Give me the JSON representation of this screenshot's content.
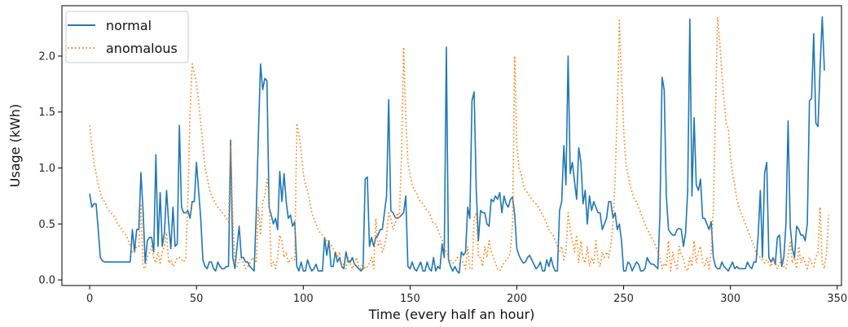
{
  "chart_data": {
    "type": "line",
    "xlabel": "Time (every half an hour)",
    "ylabel": "Usage (kWh)",
    "xlim": [
      -13,
      352
    ],
    "ylim": [
      -0.05,
      2.45
    ],
    "xticks": [
      0,
      50,
      100,
      150,
      200,
      250,
      300,
      350
    ],
    "yticks": [
      0.0,
      0.5,
      1.0,
      1.5,
      2.0
    ],
    "xtick_labels": [
      "0",
      "50",
      "100",
      "150",
      "200",
      "250",
      "300",
      "350"
    ],
    "ytick_labels": [
      "0.0",
      "0.5",
      "1.0",
      "1.5",
      "2.0"
    ],
    "grid": false,
    "legend_position": "top-left",
    "series": [
      {
        "name": "normal",
        "color": "#1f77b4",
        "style": "solid",
        "values": [
          0.77,
          0.65,
          0.68,
          0.68,
          0.45,
          0.2,
          0.17,
          0.16,
          0.16,
          0.16,
          0.16,
          0.16,
          0.16,
          0.16,
          0.16,
          0.16,
          0.16,
          0.16,
          0.16,
          0.16,
          0.45,
          0.25,
          0.45,
          0.45,
          0.96,
          0.62,
          0.15,
          0.35,
          0.38,
          0.38,
          0.25,
          1.12,
          0.3,
          0.78,
          0.3,
          0.42,
          0.8,
          0.5,
          0.28,
          0.65,
          0.3,
          0.32,
          1.38,
          0.65,
          0.6,
          0.6,
          0.62,
          0.55,
          0.7,
          0.7,
          1.05,
          0.8,
          0.55,
          0.18,
          0.12,
          0.1,
          0.16,
          0.16,
          0.1,
          0.08,
          0.16,
          0.12,
          0.1,
          0.1,
          0.12,
          0.12,
          1.25,
          0.2,
          0.1,
          0.3,
          0.48,
          0.2,
          0.2,
          0.16,
          0.16,
          0.12,
          0.1,
          0.08,
          0.6,
          1.3,
          1.93,
          1.7,
          1.8,
          1.78,
          0.65,
          0.58,
          0.5,
          0.55,
          0.45,
          0.97,
          0.7,
          0.95,
          0.7,
          0.55,
          0.58,
          0.48,
          0.52,
          0.12,
          0.08,
          0.16,
          0.08,
          0.08,
          0.18,
          0.12,
          0.08,
          0.1,
          0.14,
          0.08,
          0.08,
          0.08,
          0.38,
          0.22,
          0.35,
          0.12,
          0.12,
          0.25,
          0.16,
          0.2,
          0.12,
          0.1,
          0.25,
          0.16,
          0.16,
          0.2,
          0.14,
          0.12,
          0.1,
          0.08,
          0.1,
          0.9,
          0.92,
          0.3,
          0.38,
          0.3,
          0.38,
          0.4,
          0.45,
          0.45,
          0.6,
          0.75,
          1.61,
          0.62,
          0.6,
          0.56,
          0.55,
          0.56,
          0.58,
          0.6,
          0.75,
          0.12,
          0.1,
          0.16,
          0.1,
          0.08,
          0.12,
          0.16,
          0.08,
          0.08,
          0.16,
          0.1,
          0.08,
          0.2,
          0.08,
          0.12,
          0.1,
          0.32,
          0.2,
          2.08,
          0.18,
          0.12,
          0.08,
          0.12,
          0.08,
          0.06,
          0.25,
          0.22,
          0.25,
          0.65,
          0.55,
          1.6,
          1.68,
          0.8,
          0.35,
          0.62,
          0.6,
          0.6,
          0.5,
          0.48,
          0.72,
          0.7,
          0.75,
          0.72,
          0.78,
          0.6,
          0.75,
          0.68,
          0.65,
          0.72,
          0.74,
          0.58,
          0.28,
          0.22,
          0.18,
          0.15,
          0.16,
          0.2,
          0.22,
          0.18,
          0.14,
          0.1,
          0.12,
          0.16,
          0.08,
          0.08,
          0.18,
          0.12,
          0.2,
          0.12,
          0.08,
          0.08,
          0.62,
          0.7,
          1.2,
          0.85,
          2.0,
          0.95,
          1.05,
          0.88,
          0.72,
          1.18,
          1.05,
          0.68,
          0.8,
          0.5,
          0.75,
          0.62,
          0.7,
          0.65,
          0.6,
          0.6,
          0.45,
          0.5,
          0.55,
          0.7,
          0.7,
          0.55,
          0.6,
          0.45,
          0.5,
          0.35,
          0.08,
          0.08,
          0.16,
          0.14,
          0.08,
          0.12,
          0.16,
          0.14,
          0.08,
          0.08,
          0.1,
          0.2,
          0.16,
          0.14,
          0.14,
          0.12,
          0.1,
          0.58,
          1.81,
          1.7,
          0.75,
          0.45,
          0.42,
          0.4,
          0.4,
          0.45,
          0.46,
          0.45,
          0.3,
          0.42,
          0.8,
          2.33,
          0.75,
          1.45,
          0.85,
          0.8,
          0.9,
          0.55,
          0.55,
          0.5,
          0.45,
          0.52,
          0.2,
          0.12,
          0.1,
          0.1,
          0.16,
          0.12,
          0.1,
          0.08,
          0.12,
          0.16,
          0.1,
          0.12,
          0.1,
          0.1,
          0.1,
          0.1,
          0.16,
          0.12,
          0.1,
          0.16,
          0.16,
          0.4,
          0.8,
          0.2,
          0.95,
          1.05,
          0.2,
          0.16,
          0.2,
          0.14,
          0.38,
          0.4,
          0.12,
          0.2,
          0.5,
          1.42,
          0.48,
          0.28,
          0.2,
          0.48,
          0.45,
          0.4,
          0.4,
          0.35,
          0.5,
          1.6,
          1.62,
          2.2,
          1.4,
          1.37,
          1.9,
          2.35,
          1.87
        ]
      },
      {
        "name": "anomalous",
        "color": "#ff7f0e",
        "style": "dotted",
        "values": [
          1.38,
          1.2,
          1.05,
          0.95,
          0.85,
          0.78,
          0.72,
          0.7,
          0.65,
          0.62,
          0.6,
          0.58,
          0.55,
          0.5,
          0.48,
          0.45,
          0.42,
          0.4,
          0.36,
          0.3,
          0.25,
          0.25,
          0.3,
          0.3,
          0.68,
          0.12,
          0.1,
          0.2,
          0.25,
          0.3,
          0.2,
          0.15,
          0.25,
          0.15,
          0.25,
          0.3,
          0.42,
          0.15,
          0.18,
          0.12,
          0.15,
          0.2,
          0.2,
          0.18,
          0.16,
          0.2,
          0.72,
          1.5,
          1.93,
          1.85,
          1.75,
          1.6,
          1.4,
          1.2,
          1.0,
          0.92,
          0.82,
          0.75,
          0.72,
          0.68,
          0.65,
          0.63,
          0.6,
          0.58,
          0.55,
          0.52,
          1.2,
          0.55,
          0.15,
          0.12,
          0.18,
          0.2,
          0.15,
          0.1,
          0.12,
          0.15,
          0.2,
          0.18,
          0.15,
          0.65,
          0.4,
          0.7,
          0.75,
          0.9,
          0.75,
          0.12,
          0.16,
          0.1,
          0.2,
          0.4,
          0.35,
          0.2,
          0.25,
          0.15,
          0.18,
          0.2,
          0.18,
          1.4,
          1.3,
          1.15,
          0.95,
          0.85,
          0.8,
          0.7,
          0.6,
          0.55,
          0.5,
          0.45,
          0.42,
          0.4,
          0.38,
          0.35,
          0.3,
          0.32,
          0.28,
          0.25,
          0.2,
          0.25,
          0.12,
          0.15,
          0.1,
          0.2,
          0.15,
          0.1,
          0.15,
          0.2,
          0.12,
          0.1,
          0.15,
          0.1,
          0.12,
          0.15,
          0.2,
          0.1,
          0.55,
          0.3,
          0.35,
          0.25,
          0.3,
          0.4,
          0.6,
          0.55,
          0.45,
          0.5,
          0.6,
          0.56,
          1.1,
          2.08,
          1.45,
          1.05,
          0.95,
          0.85,
          0.8,
          0.78,
          0.72,
          0.7,
          0.68,
          0.65,
          0.62,
          0.6,
          0.55,
          0.5,
          0.5,
          0.45,
          0.4,
          0.36,
          0.3,
          0.25,
          0.2,
          0.18,
          0.15,
          0.16,
          0.2,
          0.2,
          0.18,
          0.15,
          0.1,
          0.3,
          0.1,
          0.1,
          0.55,
          0.6,
          0.2,
          0.2,
          0.12,
          0.3,
          0.2,
          0.35,
          0.25,
          0.2,
          0.15,
          0.1,
          0.08,
          0.12,
          0.15,
          0.18,
          0.2,
          0.25,
          0.5,
          2.0,
          1.2,
          1.0,
          0.95,
          0.85,
          0.8,
          0.78,
          0.75,
          0.72,
          0.7,
          0.68,
          0.65,
          0.62,
          0.58,
          0.55,
          0.5,
          0.45,
          0.42,
          0.4,
          0.35,
          0.3,
          0.25,
          0.3,
          0.18,
          0.25,
          0.6,
          0.45,
          0.35,
          0.25,
          0.4,
          0.15,
          0.35,
          0.2,
          0.15,
          0.3,
          0.12,
          0.2,
          0.15,
          0.35,
          0.18,
          0.12,
          0.25,
          0.2,
          0.25,
          0.2,
          0.3,
          0.5,
          0.9,
          1.5,
          2.32,
          1.8,
          1.35,
          1.05,
          0.95,
          0.85,
          0.78,
          0.72,
          0.7,
          0.65,
          0.6,
          0.55,
          0.5,
          0.45,
          0.42,
          0.38,
          0.35,
          0.3,
          0.25,
          0.2,
          0.1,
          0.15,
          0.12,
          0.35,
          0.08,
          0.25,
          0.15,
          0.1,
          0.3,
          0.22,
          0.2,
          0.1,
          0.08,
          0.2,
          0.12,
          0.35,
          0.15,
          0.25,
          0.3,
          0.15,
          0.12,
          0.2,
          0.1,
          0.25,
          0.62,
          1.5,
          2.35,
          2.12,
          1.85,
          1.6,
          1.4,
          1.35,
          1.1,
          0.95,
          0.85,
          0.72,
          0.65,
          0.6,
          0.55,
          0.5,
          0.45,
          0.4,
          0.35,
          0.3,
          0.25,
          0.22,
          0.2,
          0.18,
          0.15,
          0.18,
          0.15,
          0.12,
          0.2,
          0.15,
          0.1,
          0.15,
          0.2,
          0.12,
          0.1,
          0.2,
          0.35,
          0.15,
          0.2,
          0.1,
          0.3,
          0.15,
          0.2,
          0.15,
          0.1,
          0.2,
          0.15,
          0.12,
          0.2,
          0.25,
          0.65,
          0.15,
          0.1,
          0.25,
          0.58
        ]
      }
    ]
  }
}
